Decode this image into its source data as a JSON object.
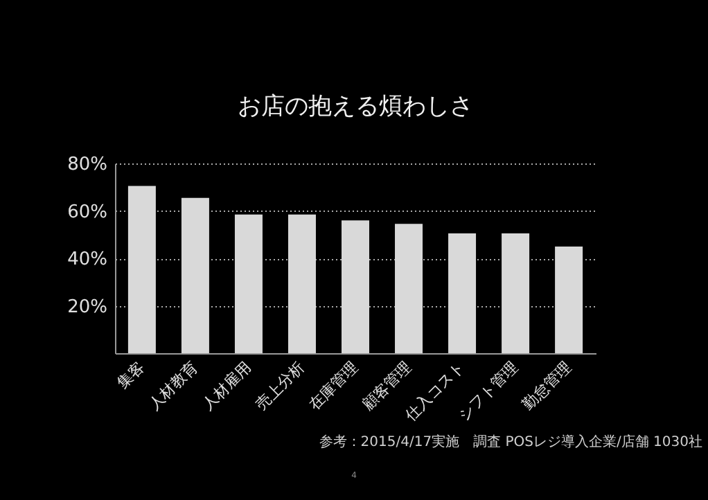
{
  "chart_data": {
    "type": "bar",
    "title": "お店の抱える煩わしさ",
    "categories": [
      "集客",
      "人材教育",
      "人材雇用",
      "売上分析",
      "在庫管理",
      "顧客管理",
      "仕入コスト",
      "シフト管理",
      "勤怠管理"
    ],
    "values": [
      70.5,
      65.5,
      58.5,
      58.5,
      56,
      54.5,
      50.5,
      50.5,
      45
    ],
    "color": "#d9d9d9",
    "ylim": [
      0,
      80
    ],
    "yticks": [
      {
        "value": 20,
        "label": "20%"
      },
      {
        "value": 40,
        "label": "40%"
      },
      {
        "value": 60,
        "label": "60%"
      },
      {
        "value": 80,
        "label": "80%"
      }
    ],
    "grid": "y",
    "annotations": [
      "参考：2015/4/17実施　調査 POSレジ導入企業/店舗 1030社",
      "4"
    ]
  }
}
